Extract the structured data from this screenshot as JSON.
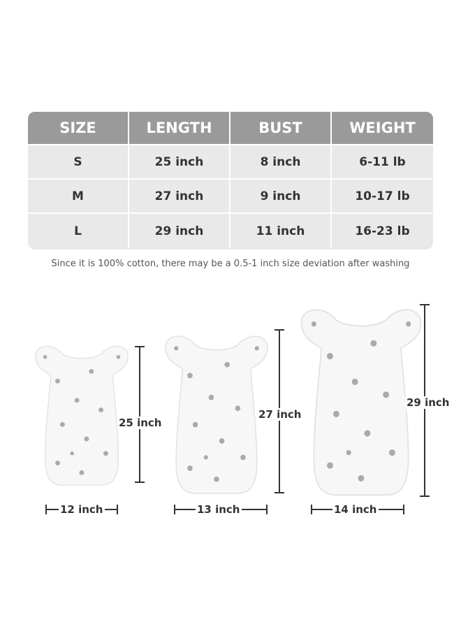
{
  "table": {
    "headers": [
      "SIZE",
      "LENGTH",
      "BUST",
      "WEIGHT"
    ],
    "rows": [
      [
        "S",
        "25 inch",
        "8 inch",
        "6-11 lb"
      ],
      [
        "M",
        "27 inch",
        "9 inch",
        "10-17 lb"
      ],
      [
        "L",
        "29 inch",
        "11 inch",
        "16-23 lb"
      ]
    ],
    "header_color": "#9a9a9a",
    "row_color": "#e9e9e9"
  },
  "note": "Since it is 100% cotton, there may be a 0.5-1 inch size deviation after washing",
  "products": [
    {
      "length": "25 inch",
      "width": "12 inch"
    },
    {
      "length": "27 inch",
      "width": "13 inch"
    },
    {
      "length": "29 inch",
      "width": "14 inch"
    }
  ]
}
